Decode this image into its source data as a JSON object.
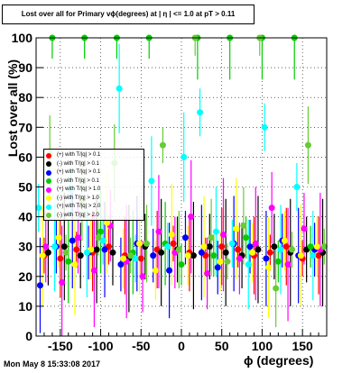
{
  "title": "Lost over all for Primary vϕ(degrees) at | η | <= 1.0 at pT > 0.11",
  "date_stamp": "Mon May  8 15:33:08 2017",
  "chart_data": {
    "type": "scatter",
    "xlabel": "ϕ (degrees)",
    "ylabel": "Lost over all (%)",
    "xlim": [
      -180,
      180
    ],
    "ylim": [
      0,
      100
    ],
    "xticks": [
      -150,
      -100,
      -50,
      0,
      50,
      100,
      150
    ],
    "yticks": [
      0,
      10,
      20,
      30,
      40,
      50,
      60,
      70,
      80,
      90,
      100
    ],
    "grid": true,
    "legend_position": "upper-left",
    "series": [
      {
        "name": "(+) with T/|q| > 0.1",
        "color": "#ff0000",
        "x": [
          -170,
          -150,
          -130,
          -110,
          -90,
          -70,
          -50,
          -30,
          -10,
          10,
          30,
          50,
          70,
          90,
          110,
          130,
          150,
          170
        ],
        "y": [
          27,
          26,
          29,
          28,
          30,
          27,
          26,
          29,
          31,
          28,
          27,
          30,
          29,
          27,
          28,
          30,
          26,
          27
        ]
      },
      {
        "name": "(-) with T/|q| > 0.1",
        "color": "#000000",
        "x": [
          -165,
          -145,
          -125,
          -105,
          -85,
          -65,
          -45,
          -25,
          -5,
          15,
          35,
          55,
          75,
          95,
          115,
          135,
          155,
          175
        ],
        "y": [
          28,
          30,
          27,
          29,
          28,
          26,
          30,
          28,
          29,
          27,
          30,
          28,
          27,
          29,
          30,
          28,
          29,
          28
        ]
      },
      {
        "name": "(+) with T/|q| > 0.1",
        "color": "#0000ff",
        "x": [
          -175,
          -155,
          -135,
          -115,
          -95,
          -75,
          -55,
          -35,
          -15,
          5,
          25,
          45,
          65,
          85,
          105,
          125,
          145,
          165
        ],
        "y": [
          17,
          30,
          32,
          28,
          29,
          24,
          31,
          27,
          22,
          33,
          28,
          23,
          31,
          30,
          26,
          32,
          27,
          29
        ]
      },
      {
        "name": "(-) with T/|q| > 0.1",
        "color": "#00cc00",
        "x": [
          -160,
          -140,
          -120,
          -100,
          -80,
          -60,
          -40,
          -20,
          0,
          20,
          40,
          60,
          80,
          100,
          120,
          140,
          160
        ],
        "y": [
          100,
          25,
          100,
          35,
          100,
          28,
          100,
          31,
          24,
          100,
          27,
          100,
          33,
          100,
          25,
          100,
          30
        ]
      },
      {
        "name": "(+) with T/|q| > 1.0",
        "color": "#ff00ff",
        "x": [
          -168,
          -148,
          -128,
          -108,
          -88,
          -68,
          -48,
          -28,
          -8,
          12,
          32,
          52,
          72,
          92,
          112,
          132,
          152,
          172
        ],
        "y": [
          30,
          18,
          33,
          22,
          37,
          25,
          20,
          35,
          28,
          40,
          21,
          34,
          26,
          31,
          43,
          24,
          36,
          29
        ]
      },
      {
        "name": "(-) with T/|q| > 1.0",
        "color": "#ffff00",
        "x": [
          -172,
          -152,
          -132,
          -112,
          -92,
          -72,
          -52,
          -32,
          -12,
          8,
          28,
          48,
          68,
          88,
          108,
          128,
          148,
          168
        ],
        "y": [
          27,
          33,
          24,
          29,
          38,
          26,
          31,
          22,
          34,
          27,
          30,
          25,
          36,
          28,
          23,
          32,
          27,
          30
        ]
      },
      {
        "name": "(+) with T/|q| > 2.0",
        "color": "#00ffff",
        "x": [
          -177,
          -157,
          -137,
          -117,
          -97,
          -77,
          -57,
          -37,
          -17,
          3,
          23,
          43,
          63,
          83,
          103,
          123,
          143,
          163
        ],
        "y": [
          43,
          30,
          49,
          28,
          32,
          83,
          26,
          52,
          30,
          60,
          75,
          35,
          31,
          24,
          70,
          29,
          50,
          27
        ]
      },
      {
        "name": "(-) with T/|q| > 2.0",
        "color": "#66cc33",
        "x": [
          -163,
          -143,
          -123,
          -103,
          -83,
          -63,
          -43,
          -23,
          -3,
          17,
          37,
          57,
          77,
          97,
          117,
          137,
          157,
          177
        ],
        "y": [
          61,
          28,
          45,
          33,
          58,
          27,
          31,
          64,
          29,
          100,
          33,
          25,
          37,
          100,
          16,
          29,
          64,
          30
        ]
      }
    ]
  }
}
